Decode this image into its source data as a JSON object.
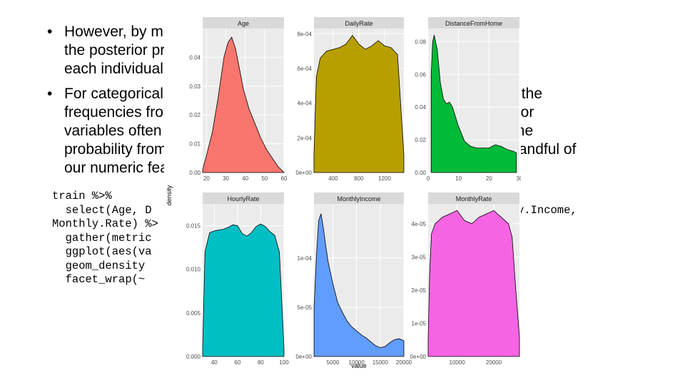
{
  "slide": {
    "bullets": [
      {
        "lines": [
          "However, by making some assumptions on the distribution such that",
          "the posterior probability reflects the most plausible distribution for",
          "each individual observation."
        ]
      },
      {
        "lines": [
          "For categorical predictors, the class-conditional probabilities just use the",
          "frequencies from the training data. But for numeric predictors, predictor",
          "variables often we make normality assumptions so that we can use the",
          "probability from a normal distribution. This is a problem if we pick a handful of",
          "our numeric features, the normality assumption is not always fair."
        ]
      }
    ],
    "bullet_symbol": "•",
    "code_lines": [
      "train %>%",
      "  select(Age, DailyRate, DistanceFromHome, HourlyRate, MonthlyIncome,",
      "Monthly.Rate) %>%",
      "  gather(metric, value) %>%",
      "  ggplot(aes(value, fill = metric)) +",
      "  geom_density(show.legend = FALSE) +",
      "  facet_wrap(~ metric, scales = \"free\")"
    ],
    "code_visible": [
      "train %>%",
      "  select(Age, D",
      "Monthly.Rate) %>",
      "  gather(metric",
      "  ggplot(aes(va",
      "  geom_density",
      "  facet_wrap(~"
    ],
    "code_right_visible": "y.Income,"
  },
  "chart_data": {
    "type": "area",
    "kind": "density facets",
    "xlabel": "value",
    "ylabel": "density",
    "panels": [
      {
        "title": "Age",
        "color": "#F8766D",
        "xlim": [
          18,
          60
        ],
        "ylim": [
          0,
          0.05
        ],
        "xticks": [
          "20",
          "30",
          "40",
          "50",
          "60"
        ],
        "yticks": [
          "0.00",
          "0.01",
          "0.02",
          "0.03",
          "0.04"
        ],
        "x": [
          18,
          20,
          23,
          26,
          29,
          31,
          33,
          35,
          37,
          39,
          42,
          45,
          48,
          51,
          54,
          57,
          60
        ],
        "y": [
          0.001,
          0.006,
          0.014,
          0.026,
          0.04,
          0.045,
          0.047,
          0.043,
          0.036,
          0.029,
          0.022,
          0.017,
          0.012,
          0.008,
          0.005,
          0.002,
          0.0
        ]
      },
      {
        "title": "DailyRate",
        "color": "#B79F00",
        "xlim": [
          102,
          1499
        ],
        "ylim": [
          0,
          0.00083
        ],
        "xticks": [
          "400",
          "800",
          "1200"
        ],
        "yticks": [
          "0e+00",
          "2e-04",
          "4e-04",
          "6e-04",
          "8e-04"
        ],
        "x": [
          102,
          140,
          200,
          300,
          400,
          500,
          600,
          700,
          800,
          900,
          1000,
          1100,
          1200,
          1300,
          1400,
          1499
        ],
        "y": [
          0.0001,
          0.00055,
          0.00066,
          0.0007,
          0.00071,
          0.00072,
          0.00074,
          0.00079,
          0.00074,
          0.00071,
          0.00073,
          0.00076,
          0.00073,
          0.00072,
          0.00068,
          0.0001
        ]
      },
      {
        "title": "DistanceFromHome",
        "color": "#00BA38",
        "xlim": [
          0,
          30
        ],
        "ylim": [
          0,
          0.088
        ],
        "xticks": [
          "0",
          "10",
          "20",
          "30"
        ],
        "yticks": [
          "0.00",
          "0.02",
          "0.04",
          "0.06",
          "0.08"
        ],
        "x": [
          1,
          1.5,
          2,
          3,
          4,
          5,
          6,
          7,
          8,
          9,
          10,
          12,
          14,
          16,
          18,
          20,
          22,
          24,
          26,
          28,
          29
        ],
        "y": [
          0.06,
          0.08,
          0.084,
          0.075,
          0.055,
          0.045,
          0.042,
          0.043,
          0.04,
          0.034,
          0.028,
          0.019,
          0.016,
          0.015,
          0.015,
          0.015,
          0.017,
          0.016,
          0.014,
          0.013,
          0.012
        ]
      },
      {
        "title": "HourlyRate",
        "color": "#00BFC4",
        "xlim": [
          30,
          100
        ],
        "ylim": [
          0,
          0.0175
        ],
        "xticks": [
          "40",
          "60",
          "80",
          "100"
        ],
        "yticks": [
          "0.000",
          "0.005",
          "0.010",
          "0.015"
        ],
        "x": [
          30,
          32,
          36,
          40,
          44,
          48,
          52,
          56,
          60,
          64,
          68,
          72,
          76,
          80,
          84,
          88,
          92,
          96,
          100
        ],
        "y": [
          0.001,
          0.012,
          0.0142,
          0.0144,
          0.0145,
          0.0146,
          0.0148,
          0.0151,
          0.015,
          0.0141,
          0.0138,
          0.0142,
          0.0149,
          0.0152,
          0.0149,
          0.0143,
          0.0139,
          0.012,
          0.001
        ]
      },
      {
        "title": "MonthlyIncome",
        "color": "#619CFF",
        "xlim": [
          1000,
          20000
        ],
        "ylim": [
          0,
          0.000155
        ],
        "xticks": [
          "5000",
          "10000",
          "15000",
          "20000"
        ],
        "yticks": [
          "0e+00",
          "5e-05",
          "1e-04"
        ],
        "x": [
          1009,
          1500,
          2000,
          2500,
          3000,
          3500,
          4000,
          5000,
          6000,
          7000,
          8000,
          9000,
          10000,
          11000,
          12000,
          13000,
          14000,
          15000,
          16000,
          17000,
          18000,
          19000,
          20000
        ],
        "y": [
          5e-05,
          0.0001,
          0.000138,
          0.000145,
          0.00013,
          0.000112,
          9.6e-05,
          7.4e-05,
          5.5e-05,
          4.5e-05,
          3.6e-05,
          3e-05,
          2.6e-05,
          2.2e-05,
          1.9e-05,
          1.5e-05,
          1.1e-05,
          9e-06,
          1e-05,
          1.4e-05,
          1.7e-05,
          1.8e-05,
          1.6e-05
        ]
      },
      {
        "title": "MonthlyRate",
        "color": "#F564E3",
        "xlim": [
          2094,
          26999
        ],
        "ylim": [
          0,
          4.6e-05
        ],
        "xticks": [
          "10000",
          "20000"
        ],
        "yticks": [
          "0e+00",
          "1e-05",
          "2e-05",
          "3e-05",
          "4e-05"
        ],
        "x": [
          2094,
          2500,
          3000,
          4000,
          5000,
          6000,
          8000,
          10000,
          12000,
          14000,
          16000,
          18000,
          20000,
          22000,
          24000,
          25000,
          26000,
          26999
        ],
        "y": [
          5e-06,
          2.5e-05,
          3.7e-05,
          4e-05,
          4.1e-05,
          4.2e-05,
          4.3e-05,
          4.4e-05,
          4.1e-05,
          4e-05,
          4.2e-05,
          4.3e-05,
          4.4e-05,
          4.2e-05,
          4e-05,
          3.6e-05,
          2e-05,
          6e-06
        ]
      }
    ]
  }
}
